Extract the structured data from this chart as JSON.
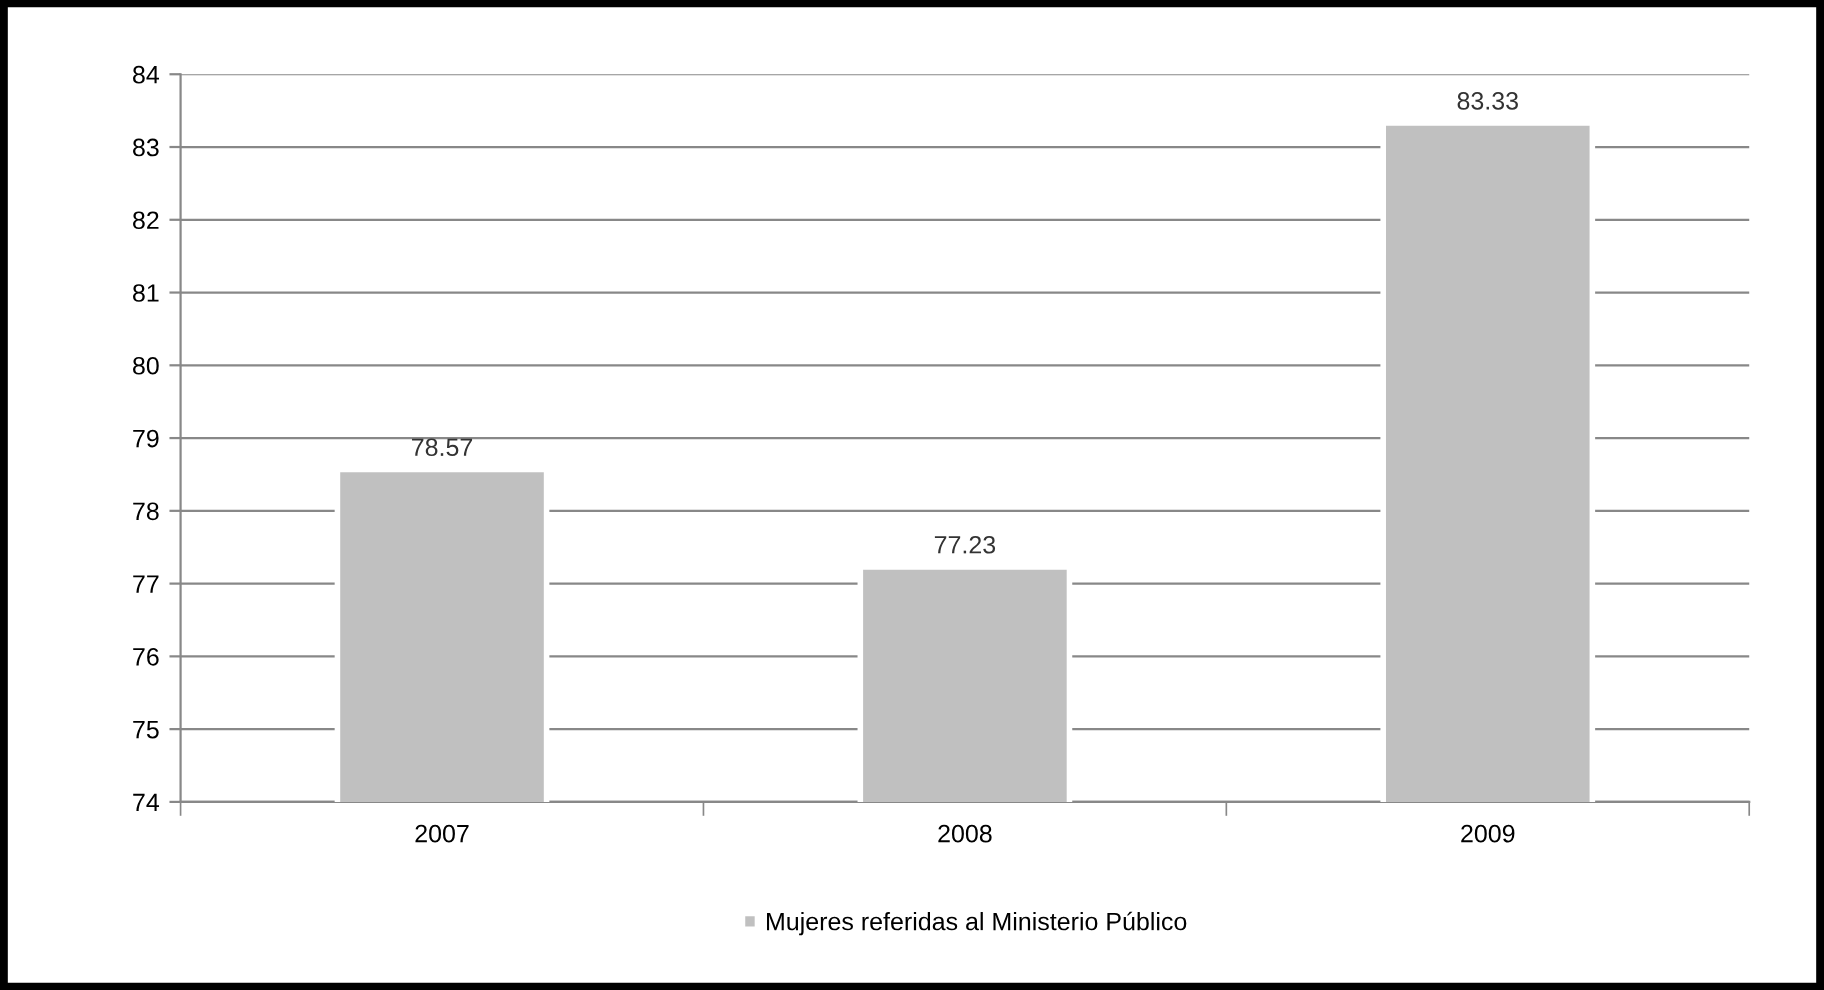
{
  "chart_data": {
    "type": "bar",
    "categories": [
      "2007",
      "2008",
      "2009"
    ],
    "series": [
      {
        "name": "Mujeres referidas al Ministerio Público",
        "color": "#c0c0c0",
        "values": [
          78.57,
          77.23,
          83.33
        ]
      }
    ],
    "ylim": [
      74,
      84
    ],
    "yticks": [
      74,
      75,
      76,
      77,
      78,
      79,
      80,
      81,
      82,
      83,
      84
    ],
    "grid": "y",
    "legend": "bottom",
    "data_labels": true
  }
}
